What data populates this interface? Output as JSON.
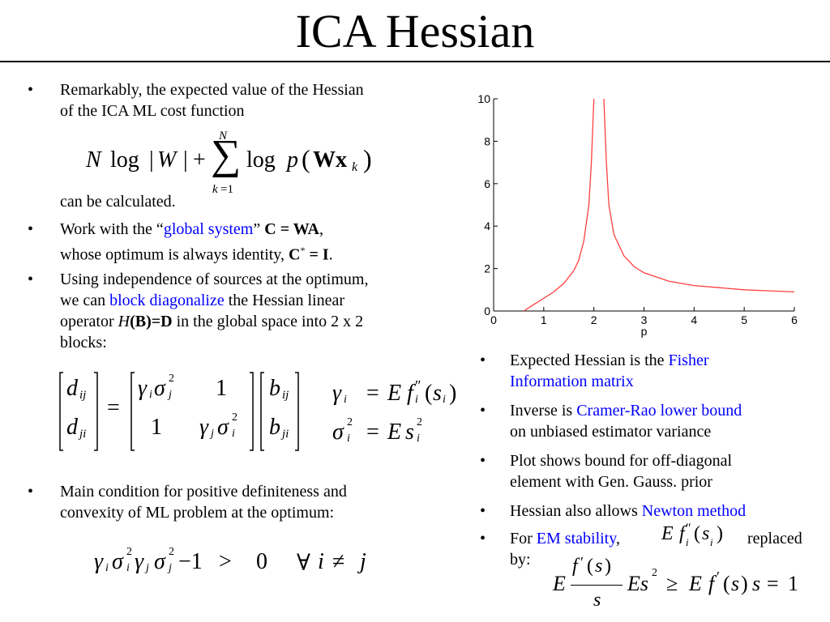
{
  "title": "ICA Hessian",
  "left_bullets": {
    "b1_line1": "Remarkably, the expected value of the Hessian",
    "b1_line2": "of the ICA ML cost function",
    "b1_tail": "can be calculated.",
    "b2_pre": "Work with the “",
    "b2_link": "global system",
    "b2_post": "” ",
    "b2_eq": "C = WA",
    "b2_line2": "whose optimum is always identity, ",
    "b2_eq2": "C",
    "b2_star": "*",
    "b2_eq2b": " = I",
    "b3_line1": "Using independence of sources at the optimum,",
    "b3_pre": "we can ",
    "b3_link": "block diagonalize",
    "b3_post": " the Hessian linear",
    "b3_line3_pre": "operator ",
    "b3_H": "H",
    "b3_BD": "(B)=D",
    "b3_line3_post": " in the global space into 2 x 2",
    "b3_line4": "blocks:",
    "b4_line1": "Main condition for positive definiteness and",
    "b4_line2": "convexity of ML problem at the optimum:"
  },
  "right_bullets": {
    "r1_pre": "Expected Hessian is the ",
    "r1_link1": "Fisher",
    "r1_link2": "Information matrix",
    "r2_pre": "Inverse is ",
    "r2_link": "Cramer-Rao lower bound",
    "r2_line2": "on unbiased estimator variance",
    "r3_line1": "Plot shows bound for off-diagonal",
    "r3_line2": "element with Gen. Gauss. prior",
    "r4_pre": "Hessian also allows ",
    "r4_link": "Newton method",
    "r5_pre": "For ",
    "r5_link": "EM stability",
    "r5_comma": ",",
    "r5_replaced": "replaced",
    "r5_by": "by:"
  },
  "chart_data": {
    "type": "line",
    "xlabel": "p",
    "ylabel": "",
    "title": "",
    "xlim": [
      0,
      6
    ],
    "ylim": [
      0,
      10
    ],
    "xticks": [
      "0",
      "1",
      "2",
      "3",
      "4",
      "5",
      "6"
    ],
    "yticks": [
      "0",
      "2",
      "4",
      "6",
      "8",
      "10"
    ],
    "grid": false,
    "series": [
      {
        "color": "#ff4040",
        "segments": [
          [
            [
              0.6,
              0.0
            ],
            [
              0.8,
              0.3
            ],
            [
              1.0,
              0.6
            ],
            [
              1.2,
              0.9
            ],
            [
              1.4,
              1.3
            ],
            [
              1.6,
              1.9
            ],
            [
              1.7,
              2.4
            ],
            [
              1.8,
              3.3
            ],
            [
              1.9,
              5.0
            ],
            [
              1.95,
              7.0
            ],
            [
              2.0,
              10.0
            ]
          ],
          [
            [
              2.2,
              10.0
            ],
            [
              2.25,
              7.0
            ],
            [
              2.3,
              5.0
            ],
            [
              2.4,
              3.6
            ],
            [
              2.6,
              2.6
            ],
            [
              2.8,
              2.1
            ],
            [
              3.0,
              1.8
            ],
            [
              3.5,
              1.4
            ],
            [
              4.0,
              1.2
            ],
            [
              4.5,
              1.1
            ],
            [
              5.0,
              1.0
            ],
            [
              5.5,
              0.95
            ],
            [
              6.0,
              0.9
            ]
          ]
        ]
      }
    ]
  },
  "colors": {
    "link": "#0000ff",
    "curve": "#ff4040",
    "text": "#000000"
  }
}
